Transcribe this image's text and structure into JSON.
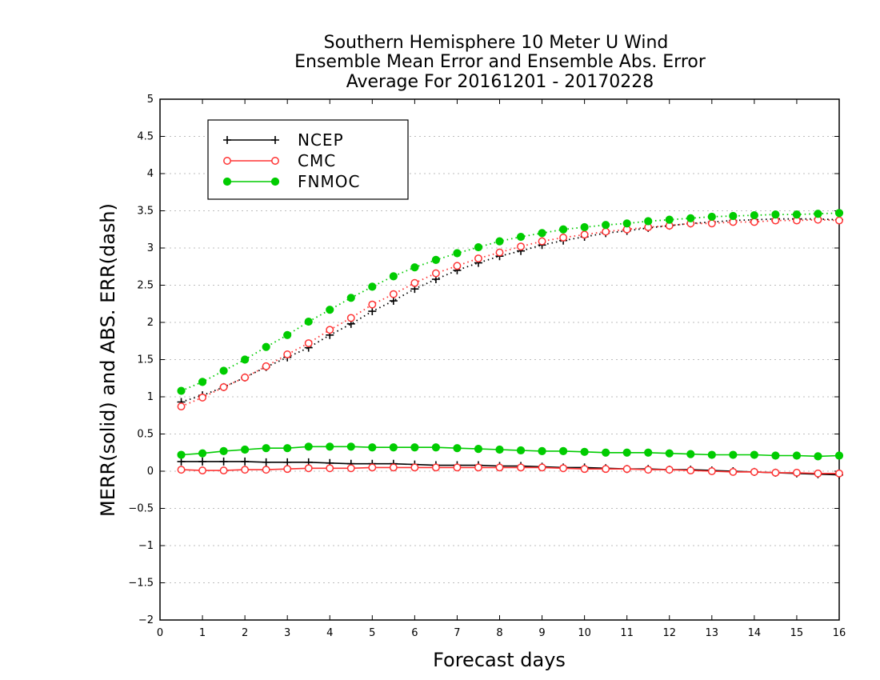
{
  "chart_data": {
    "type": "line",
    "title": [
      "Southern Hemisphere 10 Meter U Wind",
      "Ensemble Mean Error and Ensemble Abs. Error",
      "Average For 20161201 - 20170228"
    ],
    "xlabel": "Forecast days",
    "ylabel": "MERR(solid) and ABS. ERR(dash)",
    "xlim": [
      0,
      16
    ],
    "ylim": [
      -2,
      5
    ],
    "xticks": [
      0,
      1,
      2,
      3,
      4,
      5,
      6,
      7,
      8,
      9,
      10,
      11,
      12,
      13,
      14,
      15,
      16
    ],
    "yticks": [
      -2,
      -1.5,
      -1,
      -0.5,
      0,
      0.5,
      1,
      1.5,
      2,
      2.5,
      3,
      3.5,
      4,
      4.5,
      5
    ],
    "grid": true,
    "legend_position": "top-left",
    "x": [
      0.5,
      1,
      1.5,
      2,
      2.5,
      3,
      3.5,
      4,
      4.5,
      5,
      5.5,
      6,
      6.5,
      7,
      7.5,
      8,
      8.5,
      9,
      9.5,
      10,
      10.5,
      11,
      11.5,
      12,
      12.5,
      13,
      13.5,
      14,
      14.5,
      15,
      15.5,
      16
    ],
    "series": [
      {
        "name": "NCEP",
        "color": "#000000",
        "marker": "plus",
        "merr": [
          0.13,
          0.13,
          0.13,
          0.13,
          0.12,
          0.12,
          0.12,
          0.11,
          0.1,
          0.1,
          0.1,
          0.09,
          0.08,
          0.08,
          0.08,
          0.07,
          0.07,
          0.06,
          0.05,
          0.05,
          0.04,
          0.03,
          0.03,
          0.02,
          0.02,
          0.01,
          0.0,
          -0.01,
          -0.02,
          -0.03,
          -0.04,
          -0.05
        ],
        "abs_err": [
          0.93,
          1.02,
          1.13,
          1.26,
          1.4,
          1.53,
          1.66,
          1.83,
          1.98,
          2.15,
          2.29,
          2.45,
          2.58,
          2.7,
          2.8,
          2.89,
          2.96,
          3.04,
          3.1,
          3.15,
          3.2,
          3.23,
          3.27,
          3.3,
          3.33,
          3.35,
          3.37,
          3.38,
          3.39,
          3.39,
          3.39,
          3.38
        ]
      },
      {
        "name": "CMC",
        "color": "#ff3333",
        "marker": "open-circle",
        "merr": [
          0.02,
          0.01,
          0.01,
          0.02,
          0.02,
          0.03,
          0.04,
          0.04,
          0.04,
          0.05,
          0.05,
          0.05,
          0.05,
          0.05,
          0.05,
          0.05,
          0.05,
          0.05,
          0.04,
          0.03,
          0.03,
          0.03,
          0.02,
          0.02,
          0.01,
          0.0,
          -0.01,
          -0.01,
          -0.02,
          -0.02,
          -0.03,
          -0.03
        ],
        "abs_err": [
          0.87,
          0.99,
          1.13,
          1.26,
          1.41,
          1.57,
          1.72,
          1.9,
          2.06,
          2.24,
          2.38,
          2.53,
          2.66,
          2.76,
          2.86,
          2.94,
          3.02,
          3.09,
          3.14,
          3.18,
          3.22,
          3.25,
          3.28,
          3.3,
          3.33,
          3.33,
          3.35,
          3.35,
          3.37,
          3.37,
          3.38,
          3.37
        ]
      },
      {
        "name": "FNMOC",
        "color": "#00cc00",
        "marker": "filled-circle",
        "merr": [
          0.22,
          0.24,
          0.27,
          0.29,
          0.31,
          0.31,
          0.33,
          0.33,
          0.33,
          0.32,
          0.32,
          0.32,
          0.32,
          0.31,
          0.3,
          0.29,
          0.28,
          0.27,
          0.27,
          0.26,
          0.25,
          0.25,
          0.25,
          0.24,
          0.23,
          0.22,
          0.22,
          0.22,
          0.21,
          0.21,
          0.2,
          0.21
        ],
        "abs_err": [
          1.08,
          1.2,
          1.35,
          1.5,
          1.67,
          1.83,
          2.01,
          2.17,
          2.33,
          2.48,
          2.62,
          2.74,
          2.84,
          2.93,
          3.01,
          3.09,
          3.15,
          3.2,
          3.25,
          3.28,
          3.31,
          3.33,
          3.36,
          3.38,
          3.4,
          3.42,
          3.43,
          3.44,
          3.45,
          3.45,
          3.46,
          3.47
        ]
      }
    ]
  }
}
